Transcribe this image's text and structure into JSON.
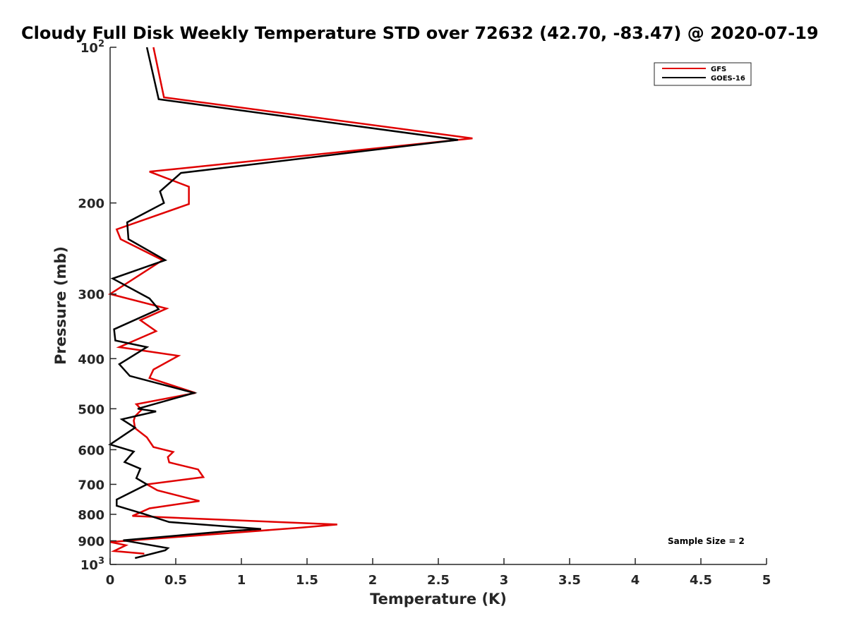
{
  "chart_data": {
    "type": "line",
    "title": "Cloudy Full Disk Weekly Temperature STD over 72632 (42.70, -83.47) @ 2020-07-19",
    "xlabel": "Temperature (K)",
    "ylabel": "Pressure (mb)",
    "xlim": [
      0,
      5
    ],
    "ylim": [
      100,
      1000
    ],
    "y_scale": "log",
    "y_reversed": true,
    "x_ticks": [
      "0",
      "0.5",
      "1",
      "1.5",
      "2",
      "2.5",
      "3",
      "3.5",
      "4",
      "4.5",
      "5"
    ],
    "y_ticks": [
      {
        "value": 100,
        "label": "10",
        "sup": "2"
      },
      {
        "value": 200,
        "label": "200",
        "sup": ""
      },
      {
        "value": 300,
        "label": "300",
        "sup": ""
      },
      {
        "value": 400,
        "label": "400",
        "sup": ""
      },
      {
        "value": 500,
        "label": "500",
        "sup": ""
      },
      {
        "value": 600,
        "label": "600",
        "sup": ""
      },
      {
        "value": 700,
        "label": "700",
        "sup": ""
      },
      {
        "value": 800,
        "label": "800",
        "sup": ""
      },
      {
        "value": 900,
        "label": "900",
        "sup": ""
      },
      {
        "value": 1000,
        "label": "10",
        "sup": "3"
      }
    ],
    "grid": false,
    "legend_position": "top-right",
    "series": [
      {
        "name": "GFS",
        "color": "#e00000",
        "points": [
          [
            0.33,
            100
          ],
          [
            0.41,
            125
          ],
          [
            2.76,
            150
          ],
          [
            0.3,
            174
          ],
          [
            0.6,
            186
          ],
          [
            0.6,
            201
          ],
          [
            0.05,
            225
          ],
          [
            0.08,
            235
          ],
          [
            0.4,
            258
          ],
          [
            0.0,
            300
          ],
          [
            0.43,
            320
          ],
          [
            0.23,
            337
          ],
          [
            0.35,
            354
          ],
          [
            0.07,
            380
          ],
          [
            0.52,
            395
          ],
          [
            0.33,
            420
          ],
          [
            0.3,
            436
          ],
          [
            0.65,
            466
          ],
          [
            0.2,
            490
          ],
          [
            0.24,
            502
          ],
          [
            0.19,
            517
          ],
          [
            0.18,
            527
          ],
          [
            0.19,
            545
          ],
          [
            0.28,
            568
          ],
          [
            0.33,
            593
          ],
          [
            0.48,
            606
          ],
          [
            0.44,
            620
          ],
          [
            0.45,
            635
          ],
          [
            0.67,
            655
          ],
          [
            0.71,
            678
          ],
          [
            0.28,
            700
          ],
          [
            0.36,
            719
          ],
          [
            0.68,
            754
          ],
          [
            0.3,
            779
          ],
          [
            0.17,
            806
          ],
          [
            1.73,
            837
          ],
          [
            1.45,
            849
          ],
          [
            0.0,
            905
          ],
          [
            0.12,
            918
          ],
          [
            0.03,
            942
          ],
          [
            0.26,
            953
          ]
        ]
      },
      {
        "name": "GOES-16",
        "color": "#000000",
        "points": [
          [
            0.28,
            100
          ],
          [
            0.37,
            126
          ],
          [
            2.65,
            151
          ],
          [
            0.54,
            175
          ],
          [
            0.38,
            190
          ],
          [
            0.41,
            200
          ],
          [
            0.13,
            218
          ],
          [
            0.14,
            235
          ],
          [
            0.42,
            258
          ],
          [
            0.02,
            280
          ],
          [
            0.3,
            306
          ],
          [
            0.37,
            321
          ],
          [
            0.03,
            351
          ],
          [
            0.04,
            369
          ],
          [
            0.28,
            380
          ],
          [
            0.07,
            410
          ],
          [
            0.15,
            432
          ],
          [
            0.64,
            466
          ],
          [
            0.21,
            500
          ],
          [
            0.35,
            506
          ],
          [
            0.09,
            524
          ],
          [
            0.19,
            544
          ],
          [
            0.0,
            586
          ],
          [
            0.18,
            605
          ],
          [
            0.11,
            634
          ],
          [
            0.23,
            653
          ],
          [
            0.2,
            681
          ],
          [
            0.28,
            700
          ],
          [
            0.05,
            749
          ],
          [
            0.05,
            770
          ],
          [
            0.26,
            799
          ],
          [
            0.45,
            828
          ],
          [
            1.15,
            854
          ],
          [
            0.9,
            862
          ],
          [
            0.1,
            898
          ],
          [
            0.44,
            930
          ],
          [
            0.42,
            939
          ],
          [
            0.19,
            972
          ]
        ]
      }
    ],
    "annotations": [
      "Sample Size = 2"
    ]
  }
}
